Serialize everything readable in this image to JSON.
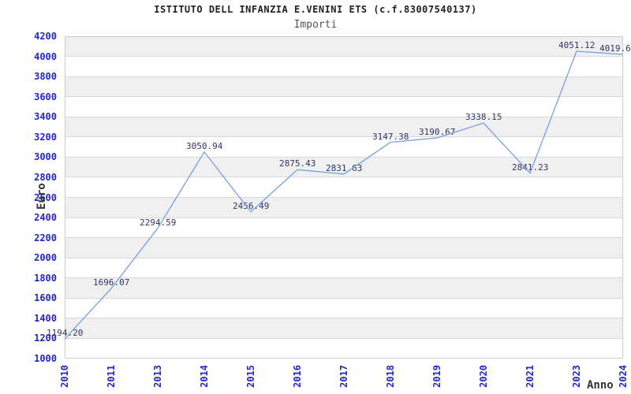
{
  "header": {
    "title": "ISTITUTO DELL INFANZIA E.VENINI ETS (c.f.83007540137)",
    "subtitle": "Importi"
  },
  "chart_data": {
    "type": "line",
    "title": "ISTITUTO DELL INFANZIA E.VENINI ETS (c.f.83007540137)",
    "subtitle": "Importi",
    "xlabel": "Anno",
    "ylabel": "Euro",
    "categories": [
      "2010",
      "2011",
      "2013",
      "2014",
      "2015",
      "2016",
      "2017",
      "2018",
      "2019",
      "2020",
      "2021",
      "2023",
      "2024"
    ],
    "values": [
      1194.2,
      1696.07,
      2294.59,
      3050.94,
      2456.49,
      2875.43,
      2831.63,
      3147.38,
      3190.67,
      3338.15,
      2841.23,
      4051.12,
      4019.6
    ],
    "value_labels": [
      "1194.20",
      "1696.07",
      "2294.59",
      "3050.94",
      "2456.49",
      "2875.43",
      "2831.63",
      "3147.38",
      "3190.67",
      "3338.15",
      "2841.23",
      "4051.12",
      "4019.6"
    ],
    "ylim": [
      1000,
      4200
    ],
    "ytick_step": 200,
    "grid": true,
    "legend": "none",
    "colors": {
      "line": "#74a1e3",
      "band": "#f0f0f0",
      "gridline": "#d9d9d9",
      "plot_border": "#cccccc",
      "axis_tick_label": "#2424cc",
      "value_label": "#333366",
      "axis_title": "#333333"
    }
  }
}
